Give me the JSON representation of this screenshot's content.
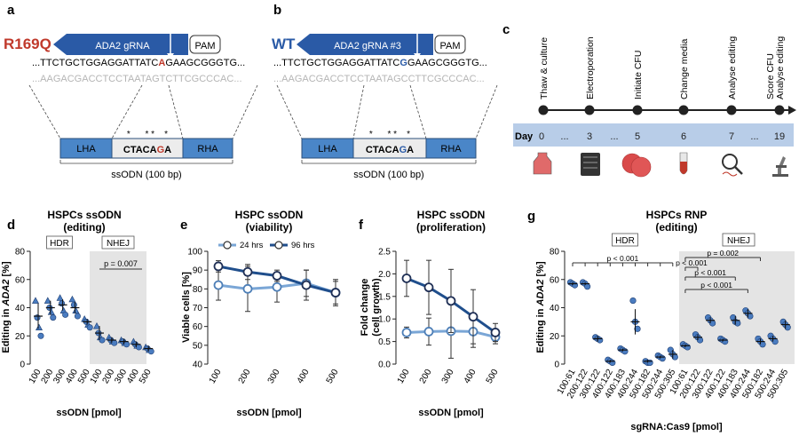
{
  "panel_a": {
    "letter": "a",
    "variant": "R169Q",
    "grna_label": "ADA2 gRNA",
    "pam": "PAM",
    "top_seq": {
      "pre": "...TTCTGCTGGAGGATTATC",
      "mut": "A",
      "post": "GAAGCGGGTG..."
    },
    "bottom_seq": "...AAGACGACCTCCTAATAGTCTTCGCCCAC...",
    "lha": "LHA",
    "rha": "RHA",
    "odn_center": {
      "pre": "CTACA",
      "mut": "G",
      "post": "A"
    },
    "stars": "*      * *    *",
    "odn_caption": "ssODN (100 bp)"
  },
  "panel_b": {
    "letter": "b",
    "variant": "WT",
    "grna_label": "ADA2 gRNA #3",
    "pam": "PAM",
    "top_seq": {
      "pre": "...TTCTGCTGGAGGATTATC",
      "mut": "G",
      "post": "GAAGCGGGTG..."
    },
    "bottom_seq": "...AAGACGACCTCCTAATAGCCTTCGCCCAC...",
    "lha": "LHA",
    "rha": "RHA",
    "odn_center": {
      "pre": "CTACA",
      "mut": "G",
      "post": "A"
    },
    "stars": "*      * *    *",
    "odn_caption": "ssODN (100 bp)"
  },
  "panel_c": {
    "letter": "c",
    "day_label": "Day",
    "steps": [
      "Thaw & culture",
      "Electroporation",
      "Initiate CFU",
      "Change media",
      "Analyse editing",
      "Score CFU\nAnalyse editing"
    ],
    "days": [
      "0",
      "...",
      "3",
      "...",
      "5",
      "6",
      "7",
      "...",
      "19"
    ],
    "icon_names": [
      "flask-icon",
      "electroporator-icon",
      "petri-dish-icon",
      "tube-icon",
      "magnifier-dna-icon",
      "microscope-icon"
    ]
  },
  "panel_d": {
    "letter": "d",
    "title": "HSPCs ssODN",
    "subtitle": "(editing)",
    "ylabel_pre": "Editing in ",
    "ylabel_gene": "ADA2",
    "ylabel_post": " [%]",
    "xlabel": "ssODN [pmol]",
    "hdr_label": "HDR",
    "nhej_label": "NHEJ",
    "pvalue": "p = 0.007",
    "chart_data": {
      "type": "scatter",
      "title": "HSPCs ssODN (editing)",
      "xlabel": "ssODN [pmol]",
      "ylabel": "Editing in ADA2 [%]",
      "ylim": [
        0,
        80
      ],
      "yticks": [
        0,
        20,
        40,
        60,
        80
      ],
      "categories": [
        "100",
        "200",
        "300",
        "400",
        "500",
        "100",
        "200",
        "300",
        "400",
        "500"
      ],
      "groups": [
        "HDR",
        "HDR",
        "HDR",
        "HDR",
        "HDR",
        "NHEJ",
        "NHEJ",
        "NHEJ",
        "NHEJ",
        "NHEJ"
      ],
      "means": [
        34,
        40,
        42,
        40,
        30,
        22,
        17,
        16,
        14,
        11
      ],
      "errors": [
        9,
        5,
        4,
        4,
        2,
        5,
        2,
        2,
        2,
        2
      ],
      "points": [
        [
          45,
          33,
          26,
          20
        ],
        [
          45,
          40,
          37,
          33
        ],
        [
          47,
          43,
          38,
          35
        ],
        [
          46,
          42,
          38,
          34
        ],
        [
          32,
          30,
          28,
          26
        ],
        [
          27,
          22,
          19,
          17
        ],
        [
          19,
          17,
          16,
          15
        ],
        [
          17,
          16,
          15,
          14
        ],
        [
          16,
          14,
          13,
          12
        ],
        [
          12,
          11,
          10,
          9
        ]
      ]
    }
  },
  "panel_e": {
    "letter": "e",
    "title": "HSPC ssODN",
    "subtitle": "(viability)",
    "ylabel": "Viable cells [%]",
    "xlabel": "ssODN [pmol]",
    "chart_data": {
      "type": "line",
      "title": "HSPC ssODN (viability)",
      "xlabel": "ssODN [pmol]",
      "ylabel": "Viable cells [%]",
      "ylim": [
        40,
        100
      ],
      "yticks": [
        40,
        50,
        60,
        70,
        80,
        90,
        100
      ],
      "x": [
        "100",
        "200",
        "300",
        "400",
        "500"
      ],
      "series": [
        {
          "name": "24 hrs",
          "values": [
            82,
            80,
            81,
            83,
            78
          ],
          "errors": [
            8,
            12,
            8,
            7,
            6
          ],
          "color": "#7aa6d6"
        },
        {
          "name": "96 hrs",
          "values": [
            92,
            89,
            87,
            82,
            78
          ],
          "errors": [
            3,
            4,
            3,
            8,
            7
          ],
          "color": "#1f4e8c"
        }
      ]
    }
  },
  "panel_f": {
    "letter": "f",
    "title": "HSPC ssODN",
    "subtitle": "(proliferation)",
    "ylabel": "Fold change\n(cell growth)",
    "xlabel": "ssODN [pmol]",
    "chart_data": {
      "type": "line",
      "title": "HSPC ssODN (proliferation)",
      "xlabel": "ssODN [pmol]",
      "ylabel": "Fold change (cell growth)",
      "ylim": [
        0,
        2.5
      ],
      "yticks": [
        0.0,
        0.5,
        1.0,
        1.5,
        2.0,
        2.5
      ],
      "x": [
        "100",
        "200",
        "300",
        "400",
        "500"
      ],
      "series": [
        {
          "name": "24 hrs",
          "values": [
            0.7,
            0.72,
            0.73,
            0.72,
            0.6
          ],
          "errors": [
            0.12,
            0.3,
            0.6,
            0.35,
            0.15
          ],
          "color": "#7aa6d6"
        },
        {
          "name": "96 hrs",
          "values": [
            1.9,
            1.7,
            1.4,
            1.05,
            0.7
          ],
          "errors": [
            0.4,
            0.6,
            0.7,
            0.6,
            0.2
          ],
          "color": "#1f4e8c"
        }
      ]
    }
  },
  "panel_g": {
    "letter": "g",
    "title": "HSPCs RNP",
    "subtitle": "(editing)",
    "ylabel_pre": "Editing in ",
    "ylabel_gene": "ADA2",
    "ylabel_post": " [%]",
    "xlabel": "sgRNA:Cas9 [pmol]",
    "hdr_label": "HDR",
    "nhej_label": "NHEJ",
    "pvalues": [
      "p < 0.001",
      "p = 0.002",
      "p < 0.001",
      "p < 0.001",
      "p < 0.001"
    ],
    "chart_data": {
      "type": "scatter",
      "title": "HSPCs RNP (editing)",
      "xlabel": "sgRNA:Cas9 [pmol]",
      "ylabel": "Editing in ADA2 [%]",
      "ylim": [
        0,
        80
      ],
      "yticks": [
        0,
        20,
        40,
        60,
        80
      ],
      "categories": [
        "100:61",
        "200:122",
        "300:122",
        "400:122",
        "400:183",
        "400:244",
        "500:182",
        "500:244",
        "500:305",
        "100:61",
        "200:122",
        "300:122",
        "400:122",
        "400:183",
        "400:244",
        "500:182",
        "500:244",
        "500:305"
      ],
      "groups": [
        "HDR",
        "HDR",
        "HDR",
        "HDR",
        "HDR",
        "HDR",
        "HDR",
        "HDR",
        "HDR",
        "NHEJ",
        "NHEJ",
        "NHEJ",
        "NHEJ",
        "NHEJ",
        "NHEJ",
        "NHEJ",
        "NHEJ",
        "NHEJ"
      ],
      "means": [
        57,
        57,
        18,
        2,
        10,
        30,
        2,
        5,
        7,
        13,
        19,
        31,
        17,
        31,
        36,
        16,
        18,
        28
      ],
      "errors": [
        1,
        1,
        2,
        1,
        1,
        9,
        1,
        1,
        3,
        1,
        2,
        2,
        1,
        3,
        3,
        2,
        2,
        3
      ],
      "points": [
        [
          58,
          57,
          56
        ],
        [
          58,
          57,
          55
        ],
        [
          19,
          18,
          17
        ],
        [
          3,
          2,
          1
        ],
        [
          11,
          10,
          9
        ],
        [
          45,
          30,
          25
        ],
        [
          2,
          1,
          1
        ],
        [
          6,
          5,
          4
        ],
        [
          10,
          7,
          5
        ],
        [
          14,
          13,
          12
        ],
        [
          21,
          19,
          17
        ],
        [
          33,
          31,
          29
        ],
        [
          18,
          17,
          16
        ],
        [
          33,
          30,
          29
        ],
        [
          38,
          36,
          34
        ],
        [
          18,
          16,
          14
        ],
        [
          20,
          18,
          16
        ],
        [
          30,
          28,
          26
        ]
      ]
    }
  }
}
